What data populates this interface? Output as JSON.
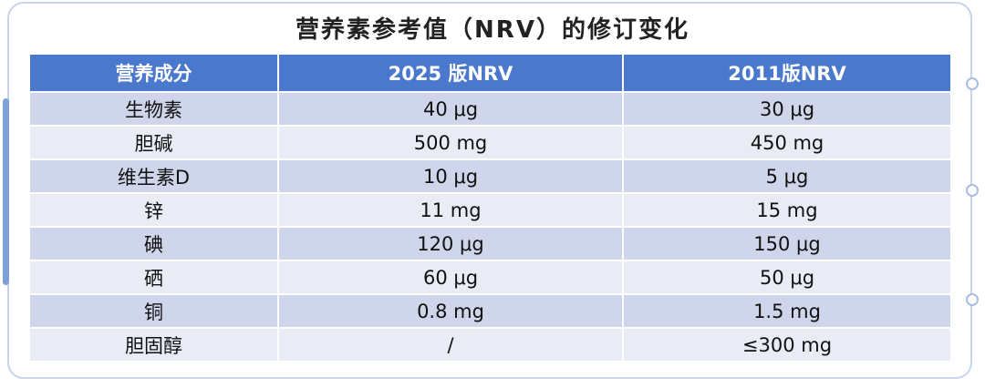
{
  "header": {
    "title": "营养素参考值（NRV）的修订变化"
  },
  "table": {
    "headers": [
      "营养成分",
      "2025 版NRV",
      "2011版NRV"
    ],
    "rows": [
      [
        "生物素",
        "40 μg",
        "30 μg"
      ],
      [
        "胆碱",
        "500 mg",
        "450 mg"
      ],
      [
        "维生素D",
        "10 μg",
        "5 μg"
      ],
      [
        "锌",
        "11 mg",
        "15 mg"
      ],
      [
        "碘",
        "120 μg",
        "150 μg"
      ],
      [
        "硒",
        "60 μg",
        "50 μg"
      ],
      [
        "铜",
        "0.8 mg",
        "1.5 mg"
      ],
      [
        "胆固醇",
        "/",
        "≤300 mg"
      ]
    ]
  }
}
